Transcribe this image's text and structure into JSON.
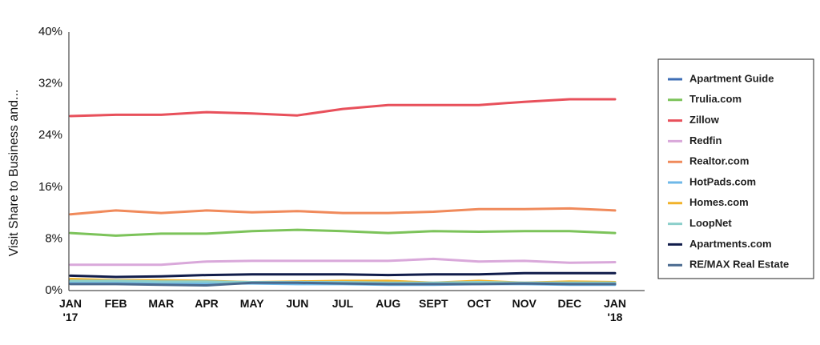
{
  "chart_data": {
    "type": "line",
    "ylabel": "Visit Share to Business and...",
    "xlabel": "",
    "title": "",
    "ylim": [
      0,
      40
    ],
    "y_ticks": [
      "0%",
      "8%",
      "16%",
      "24%",
      "32%",
      "40%"
    ],
    "y_tick_values": [
      0,
      8,
      16,
      24,
      32,
      40
    ],
    "categories": [
      [
        "JAN",
        "'17"
      ],
      [
        "FEB"
      ],
      [
        "MAR"
      ],
      [
        "APR"
      ],
      [
        "MAY"
      ],
      [
        "JUN"
      ],
      [
        "JUL"
      ],
      [
        "AUG"
      ],
      [
        "SEPT"
      ],
      [
        "OCT"
      ],
      [
        "NOV"
      ],
      [
        "DEC"
      ],
      [
        "JAN",
        "'18"
      ]
    ],
    "grid": false,
    "legend_position": "right",
    "series": [
      {
        "name": "Apartment Guide",
        "color": "#3d6db5",
        "values": [
          1.6,
          1.5,
          1.4,
          1.3,
          1.2,
          1.2,
          1.2,
          1.1,
          1.1,
          1.1,
          1.1,
          1.1,
          1.0
        ]
      },
      {
        "name": "Trulia.com",
        "color": "#7cc35a",
        "values": [
          8.9,
          8.5,
          8.8,
          8.8,
          9.2,
          9.4,
          9.2,
          8.9,
          9.2,
          9.1,
          9.2,
          9.2,
          8.9
        ]
      },
      {
        "name": "Zillow",
        "color": "#e8505b",
        "values": [
          27.0,
          27.2,
          27.2,
          27.6,
          27.4,
          27.1,
          28.1,
          28.7,
          28.7,
          28.7,
          29.2,
          29.6,
          29.6
        ]
      },
      {
        "name": "Redfin",
        "color": "#d9a8da",
        "values": [
          4.0,
          4.0,
          4.0,
          4.5,
          4.6,
          4.6,
          4.6,
          4.6,
          4.9,
          4.5,
          4.6,
          4.3,
          4.4
        ]
      },
      {
        "name": "Realtor.com",
        "color": "#f08a5b",
        "values": [
          11.8,
          12.4,
          12.0,
          12.4,
          12.1,
          12.3,
          12.0,
          12.0,
          12.2,
          12.6,
          12.6,
          12.7,
          12.4
        ]
      },
      {
        "name": "HotPads.com",
        "color": "#6fb8e8",
        "values": [
          1.2,
          1.2,
          1.1,
          1.1,
          1.1,
          1.0,
          1.0,
          0.9,
          0.9,
          1.0,
          1.0,
          0.9,
          0.9
        ]
      },
      {
        "name": "Homes.com",
        "color": "#f1b22a",
        "values": [
          1.8,
          1.6,
          1.6,
          1.5,
          1.3,
          1.4,
          1.5,
          1.5,
          1.2,
          1.5,
          1.2,
          1.4,
          1.3
        ]
      },
      {
        "name": "LoopNet",
        "color": "#8ccfcb",
        "values": [
          1.5,
          1.5,
          1.4,
          1.4,
          1.3,
          1.3,
          1.3,
          1.2,
          1.2,
          1.3,
          1.2,
          1.2,
          1.2
        ]
      },
      {
        "name": "Apartments.com",
        "color": "#101c4a",
        "values": [
          2.3,
          2.1,
          2.2,
          2.4,
          2.5,
          2.5,
          2.5,
          2.4,
          2.5,
          2.5,
          2.7,
          2.7,
          2.7
        ]
      },
      {
        "name": "RE/MAX Real Estate",
        "color": "#4a6a8f",
        "values": [
          1.0,
          1.0,
          0.9,
          0.8,
          1.2,
          1.2,
          1.1,
          1.0,
          1.0,
          1.0,
          1.1,
          1.0,
          1.0
        ]
      }
    ]
  }
}
